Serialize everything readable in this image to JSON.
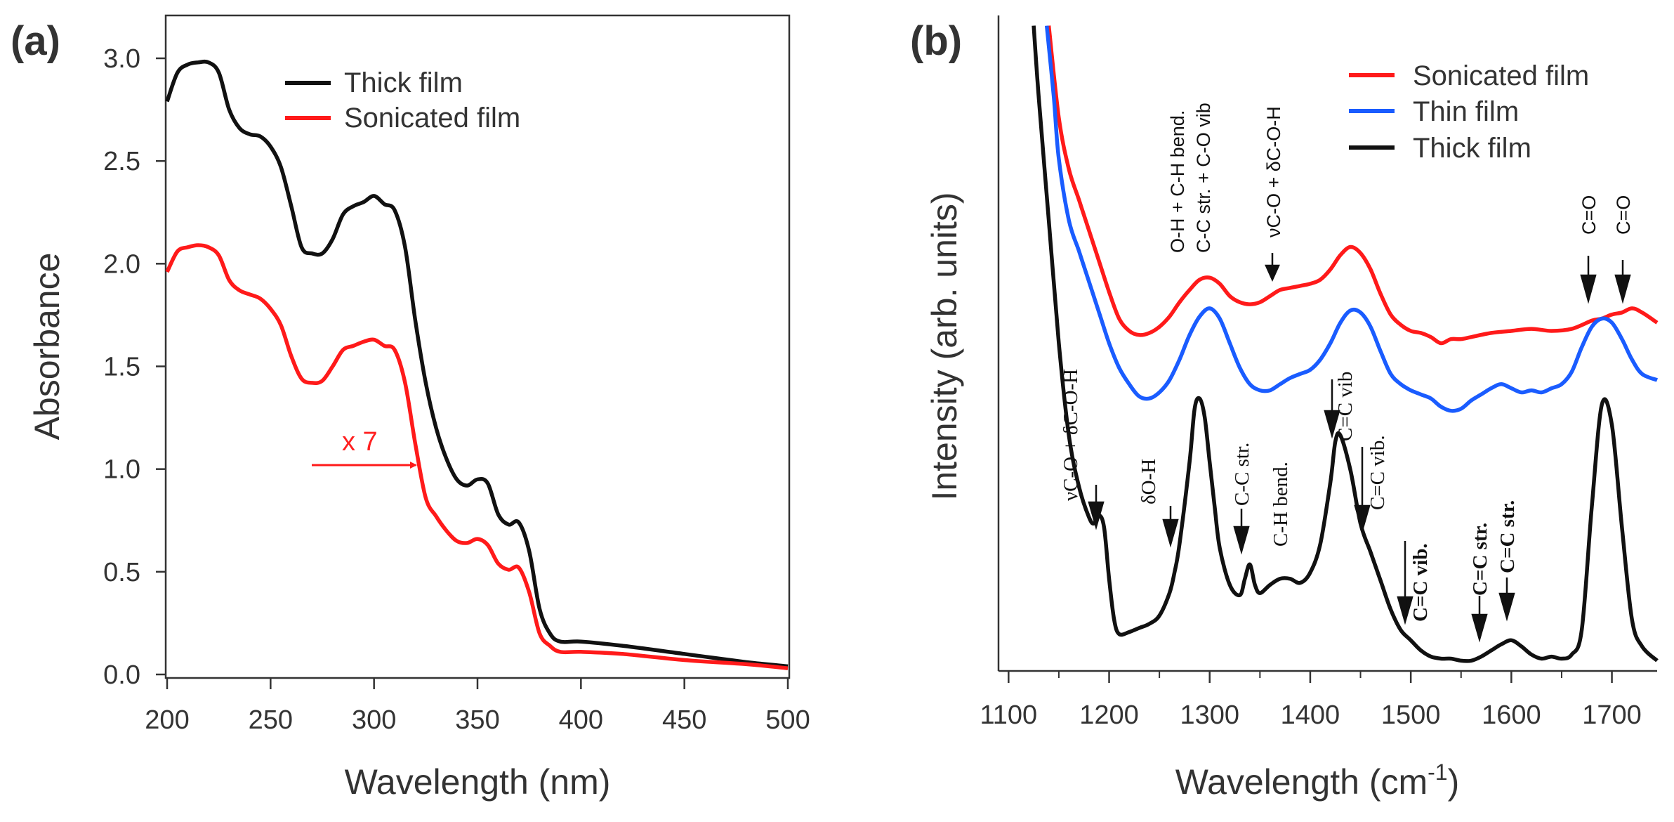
{
  "colors": {
    "black": "#111111",
    "red": "#ff1a1a",
    "blue": "#1a5cff",
    "axis": "#333333"
  },
  "chart_data": [
    {
      "type": "line",
      "panel": "(a)",
      "xlabel": "Wavelength (nm)",
      "ylabel": "Absorbance",
      "xlim": [
        200,
        500
      ],
      "ylim": [
        0,
        3.2
      ],
      "xticks": [
        200,
        250,
        300,
        350,
        400,
        450,
        500
      ],
      "xtick_labels": [
        "200",
        "250",
        "300",
        "350",
        "400",
        "450",
        "500"
      ],
      "yticks": [
        0,
        0.5,
        1.0,
        1.5,
        2.0,
        2.5,
        3.0
      ],
      "ytick_labels": [
        "0.0",
        "0.5",
        "1.0",
        "1.5",
        "2.0",
        "2.5",
        "3.0"
      ],
      "annotation": {
        "text": "x 7",
        "x_start": 268,
        "x_end": 318,
        "y": 1.02
      },
      "series": [
        {
          "name": "Thick film",
          "color": "#111111",
          "x": [
            200,
            205,
            210,
            215,
            220,
            225,
            230,
            235,
            240,
            245,
            250,
            255,
            260,
            265,
            270,
            275,
            280,
            285,
            290,
            295,
            300,
            305,
            310,
            315,
            320,
            325,
            330,
            335,
            340,
            345,
            350,
            355,
            360,
            365,
            370,
            375,
            380,
            385,
            390,
            400,
            420,
            450,
            480,
            500
          ],
          "y": [
            2.79,
            2.93,
            2.97,
            2.98,
            2.98,
            2.93,
            2.75,
            2.66,
            2.63,
            2.62,
            2.57,
            2.47,
            2.28,
            2.08,
            2.05,
            2.05,
            2.12,
            2.24,
            2.28,
            2.3,
            2.33,
            2.29,
            2.26,
            2.08,
            1.72,
            1.42,
            1.2,
            1.05,
            0.95,
            0.92,
            0.95,
            0.93,
            0.78,
            0.73,
            0.74,
            0.6,
            0.32,
            0.2,
            0.16,
            0.16,
            0.14,
            0.1,
            0.06,
            0.04
          ]
        },
        {
          "name": "Sonicated film",
          "color": "#ff1a1a",
          "x": [
            200,
            205,
            210,
            215,
            220,
            225,
            230,
            235,
            240,
            245,
            250,
            255,
            260,
            265,
            270,
            275,
            280,
            285,
            290,
            295,
            300,
            305,
            310,
            315,
            320,
            325,
            330,
            335,
            340,
            345,
            350,
            355,
            360,
            365,
            370,
            375,
            380,
            385,
            390,
            400,
            420,
            450,
            480,
            500
          ],
          "y": [
            1.96,
            2.06,
            2.08,
            2.09,
            2.08,
            2.04,
            1.92,
            1.87,
            1.85,
            1.83,
            1.78,
            1.7,
            1.55,
            1.44,
            1.42,
            1.43,
            1.5,
            1.58,
            1.6,
            1.62,
            1.63,
            1.6,
            1.58,
            1.42,
            1.12,
            0.86,
            0.77,
            0.7,
            0.65,
            0.64,
            0.66,
            0.63,
            0.54,
            0.51,
            0.52,
            0.4,
            0.2,
            0.14,
            0.11,
            0.11,
            0.1,
            0.07,
            0.05,
            0.03
          ]
        }
      ],
      "legend": [
        "Thick film",
        "Sonicated film"
      ]
    },
    {
      "type": "line",
      "panel": "(b)",
      "xlabel": "Wavelength (cm",
      "xlabel_sup": "-1",
      "xlabel_close": ")",
      "ylabel": "Intensity (arb. units)",
      "xlim": [
        1090,
        1745
      ],
      "ylim": [
        0,
        3.2
      ],
      "xticks": [
        1100,
        1200,
        1300,
        1400,
        1500,
        1600,
        1700
      ],
      "xtick_labels": [
        "1100",
        "1200",
        "1300",
        "1400",
        "1500",
        "1600",
        "1700"
      ],
      "series": [
        {
          "name": "Sonicated film",
          "color": "#ff1a1a",
          "x": [
            1140,
            1150,
            1160,
            1170,
            1180,
            1190,
            1200,
            1210,
            1220,
            1230,
            1240,
            1250,
            1260,
            1270,
            1280,
            1290,
            1300,
            1310,
            1320,
            1330,
            1340,
            1350,
            1360,
            1370,
            1380,
            1390,
            1400,
            1410,
            1420,
            1430,
            1440,
            1450,
            1460,
            1470,
            1480,
            1490,
            1500,
            1510,
            1520,
            1530,
            1540,
            1550,
            1560,
            1580,
            1600,
            1620,
            1640,
            1660,
            1680,
            1690,
            1700,
            1710,
            1720,
            1730,
            1745
          ],
          "y": [
            3.15,
            2.7,
            2.45,
            2.3,
            2.15,
            2.0,
            1.85,
            1.72,
            1.66,
            1.64,
            1.65,
            1.68,
            1.73,
            1.8,
            1.86,
            1.91,
            1.92,
            1.89,
            1.83,
            1.8,
            1.79,
            1.8,
            1.83,
            1.86,
            1.87,
            1.88,
            1.89,
            1.91,
            1.96,
            2.03,
            2.07,
            2.04,
            1.96,
            1.84,
            1.74,
            1.69,
            1.66,
            1.65,
            1.63,
            1.6,
            1.62,
            1.62,
            1.63,
            1.65,
            1.66,
            1.67,
            1.66,
            1.67,
            1.71,
            1.72,
            1.74,
            1.75,
            1.77,
            1.75,
            1.7
          ]
        },
        {
          "name": "Thin film",
          "color": "#1a5cff",
          "x": [
            1138,
            1145,
            1150,
            1160,
            1170,
            1180,
            1190,
            1200,
            1210,
            1220,
            1230,
            1240,
            1250,
            1260,
            1270,
            1280,
            1290,
            1300,
            1310,
            1320,
            1330,
            1340,
            1350,
            1360,
            1370,
            1380,
            1390,
            1400,
            1410,
            1420,
            1430,
            1440,
            1450,
            1460,
            1470,
            1480,
            1490,
            1500,
            1510,
            1520,
            1530,
            1540,
            1550,
            1560,
            1570,
            1580,
            1590,
            1600,
            1610,
            1620,
            1630,
            1640,
            1650,
            1660,
            1670,
            1680,
            1690,
            1700,
            1710,
            1720,
            1730,
            1745
          ],
          "y": [
            3.15,
            2.8,
            2.5,
            2.2,
            2.05,
            1.9,
            1.75,
            1.6,
            1.48,
            1.4,
            1.34,
            1.33,
            1.36,
            1.42,
            1.52,
            1.64,
            1.73,
            1.77,
            1.72,
            1.6,
            1.48,
            1.4,
            1.37,
            1.37,
            1.4,
            1.43,
            1.45,
            1.47,
            1.52,
            1.6,
            1.7,
            1.76,
            1.75,
            1.68,
            1.56,
            1.45,
            1.4,
            1.37,
            1.35,
            1.33,
            1.29,
            1.27,
            1.28,
            1.32,
            1.35,
            1.38,
            1.4,
            1.38,
            1.36,
            1.37,
            1.36,
            1.38,
            1.4,
            1.46,
            1.58,
            1.68,
            1.72,
            1.7,
            1.62,
            1.52,
            1.45,
            1.42
          ]
        },
        {
          "name": "Thick film",
          "color": "#111111",
          "x": [
            1125,
            1130,
            1140,
            1150,
            1160,
            1170,
            1180,
            1185,
            1190,
            1195,
            1200,
            1205,
            1210,
            1220,
            1230,
            1240,
            1250,
            1260,
            1265,
            1270,
            1280,
            1285,
            1290,
            1295,
            1300,
            1305,
            1310,
            1320,
            1330,
            1335,
            1340,
            1345,
            1350,
            1360,
            1370,
            1380,
            1390,
            1400,
            1410,
            1420,
            1425,
            1430,
            1440,
            1450,
            1460,
            1470,
            1480,
            1490,
            1500,
            1510,
            1520,
            1530,
            1540,
            1550,
            1560,
            1570,
            1580,
            1590,
            1600,
            1610,
            1620,
            1630,
            1640,
            1650,
            1660,
            1670,
            1680,
            1690,
            1700,
            1710,
            1720,
            1730,
            1745
          ],
          "y": [
            3.15,
            2.8,
            2.2,
            1.6,
            1.15,
            0.9,
            0.75,
            0.72,
            0.76,
            0.7,
            0.45,
            0.25,
            0.18,
            0.19,
            0.21,
            0.23,
            0.27,
            0.38,
            0.48,
            0.62,
            1.02,
            1.28,
            1.33,
            1.24,
            1.02,
            0.8,
            0.6,
            0.42,
            0.37,
            0.45,
            0.52,
            0.42,
            0.38,
            0.42,
            0.45,
            0.45,
            0.43,
            0.48,
            0.62,
            0.92,
            1.12,
            1.15,
            0.98,
            0.72,
            0.58,
            0.44,
            0.3,
            0.2,
            0.15,
            0.1,
            0.07,
            0.06,
            0.06,
            0.05,
            0.05,
            0.07,
            0.1,
            0.13,
            0.15,
            0.12,
            0.08,
            0.06,
            0.07,
            0.06,
            0.08,
            0.2,
            0.8,
            1.3,
            1.2,
            0.7,
            0.25,
            0.12,
            0.05
          ]
        }
      ],
      "legend": [
        "Sonicated film",
        "Thin film",
        "Thick film"
      ],
      "annotations": {
        "red_top_1": "O-H + C-H bend.",
        "red_top_2": "C-C str. + C-O vib",
        "red_top_3": "νC-O + δC-O-H",
        "red_co_1": "C=O",
        "red_co_2": "C=O",
        "black_1": "νC-O + δC-O-H",
        "black_2": "δO-H",
        "black_3": "C-C str.",
        "black_4": "C-H bend.",
        "black_5": "C=C vib",
        "black_6": "C=C vib.",
        "black_7": "C=C vib.",
        "black_8": "C=C str.",
        "black_9": "C=C str."
      }
    }
  ]
}
